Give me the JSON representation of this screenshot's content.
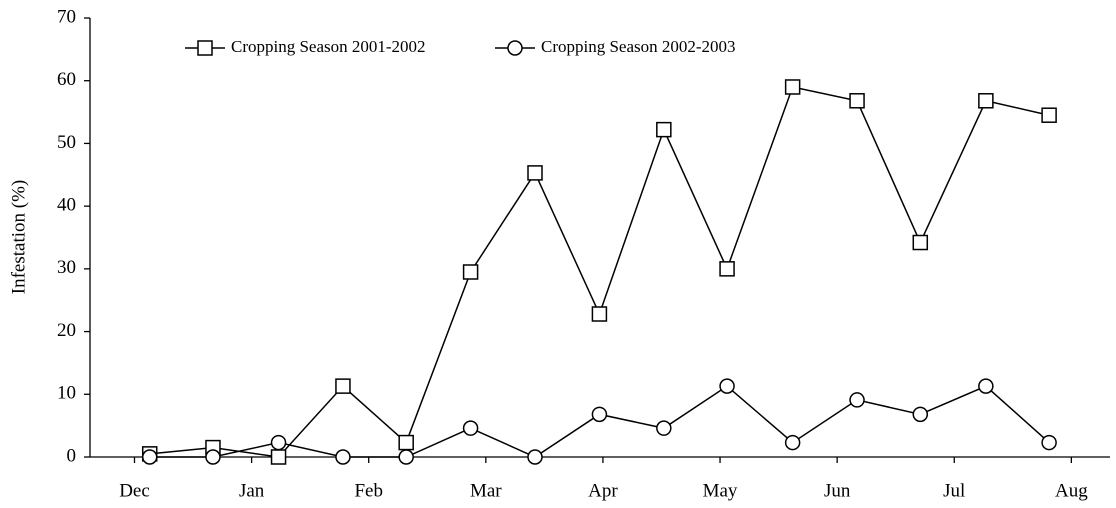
{
  "chart_data": {
    "type": "line",
    "y_label": "Infestation (%)",
    "x": [
      0.13,
      0.67,
      1.23,
      1.78,
      2.32,
      2.87,
      3.42,
      3.97,
      4.52,
      5.06,
      5.62,
      6.17,
      6.71,
      7.27,
      7.81
    ],
    "series": [
      {
        "name": "Cropping Season 2001-2002",
        "color": "#000000",
        "marker": "square",
        "values": [
          0.5,
          1.5,
          0,
          11.3,
          2.3,
          29.5,
          45.3,
          22.8,
          52.2,
          30,
          59,
          56.8,
          34.2,
          56.8,
          54.5
        ]
      },
      {
        "name": "Cropping Season 2002-2003",
        "color": "#000000",
        "marker": "circle",
        "values": [
          0,
          0,
          2.3,
          0,
          0,
          4.6,
          0,
          6.8,
          4.6,
          11.3,
          2.3,
          9.1,
          6.8,
          11.3,
          2.3
        ]
      }
    ],
    "xlim": [
      -0.38,
      8.33
    ],
    "xticks": [
      {
        "value": 0,
        "label": "Dec"
      },
      {
        "value": 1,
        "label": "Jan"
      },
      {
        "value": 2,
        "label": "Feb"
      },
      {
        "value": 3,
        "label": "Mar"
      },
      {
        "value": 4,
        "label": "Apr"
      },
      {
        "value": 5,
        "label": "May"
      },
      {
        "value": 6,
        "label": "Jun"
      },
      {
        "value": 7,
        "label": "Jul"
      },
      {
        "value": 8,
        "label": "Aug"
      }
    ],
    "ylim": [
      0,
      70
    ],
    "yticks": [
      0,
      10,
      20,
      30,
      40,
      50,
      60,
      70
    ],
    "legend": "top-left"
  }
}
